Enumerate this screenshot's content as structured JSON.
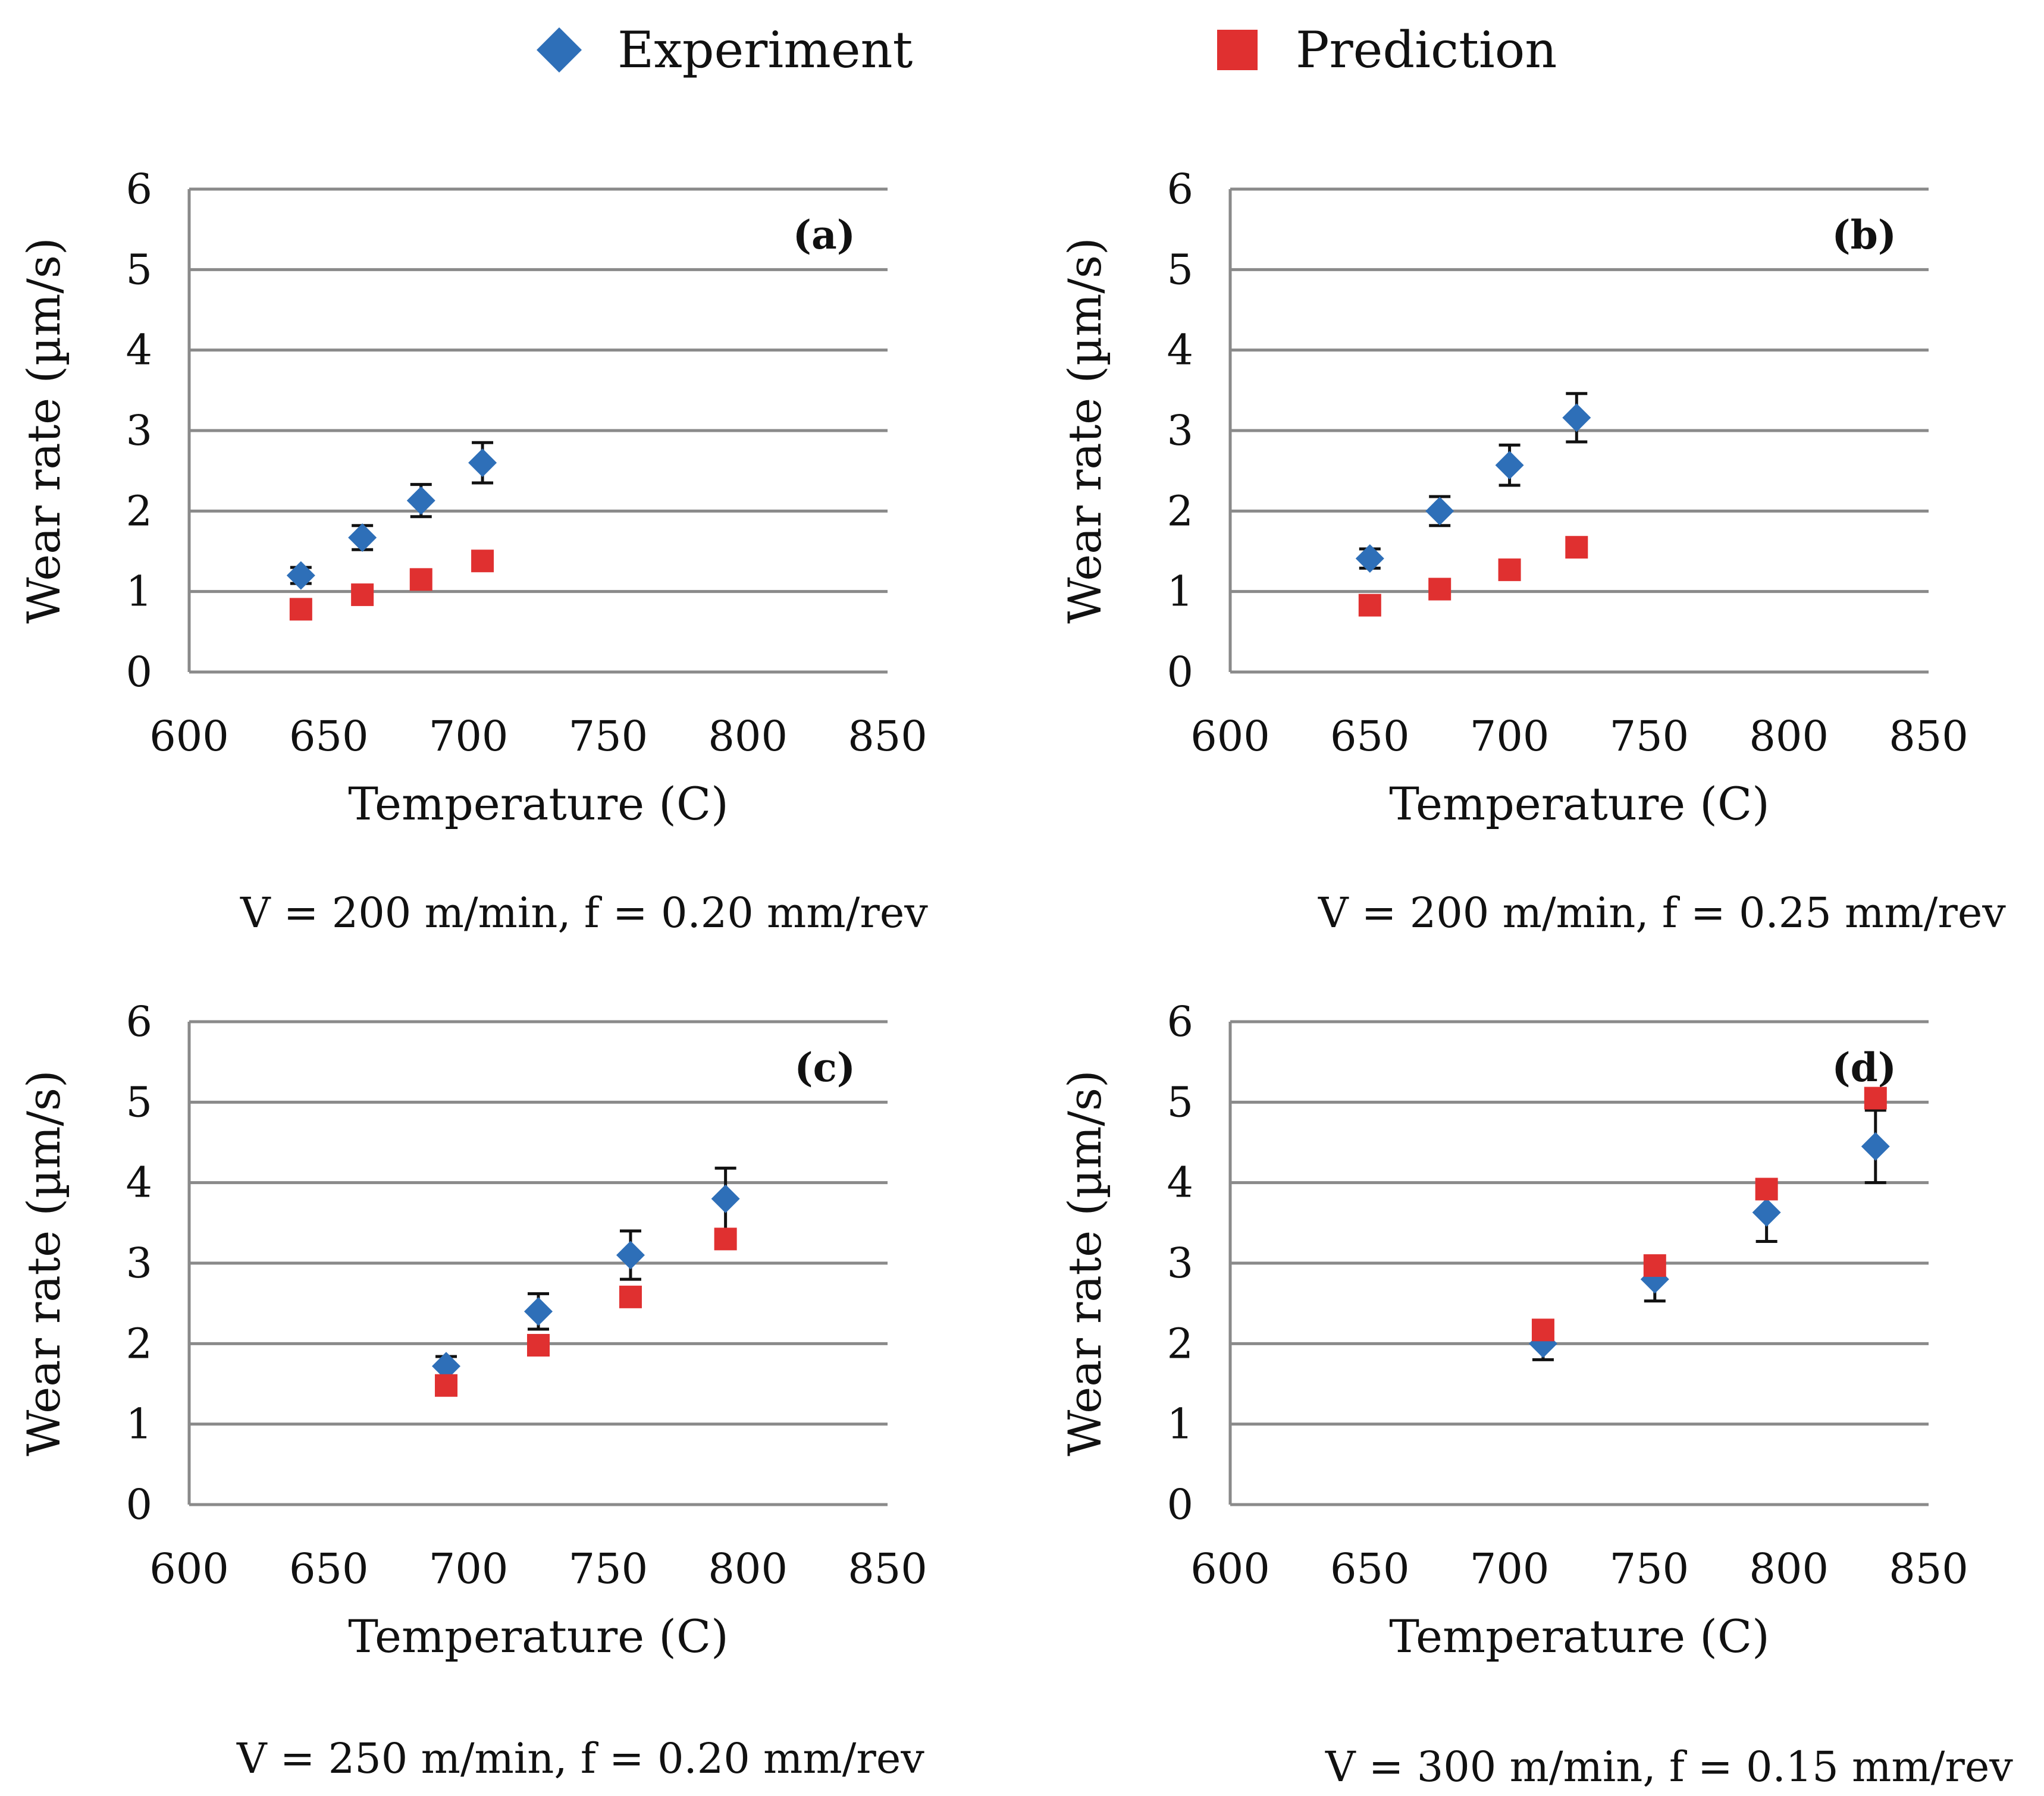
{
  "legend": {
    "experiment_label": "Experiment",
    "prediction_label": "Prediction",
    "experiment_color": "#2e6fb8",
    "prediction_color": "#e03030"
  },
  "chart_data": [
    {
      "type": "scatter",
      "panel": "(a)",
      "caption": "V = 200 m/min, f = 0.20 mm/rev",
      "xlabel": "Temperature (C)",
      "ylabel": "Wear rate (µm/s)",
      "xlim": [
        600,
        850
      ],
      "ylim": [
        0,
        6
      ],
      "xticks": [
        "600",
        "650",
        "700",
        "750",
        "800",
        "850"
      ],
      "yticks": [
        "0",
        "1",
        "2",
        "3",
        "4",
        "5",
        "6"
      ],
      "grid": "horizontal",
      "series": [
        {
          "name": "Experiment",
          "marker": "diamond",
          "x": [
            640,
            662,
            683,
            705
          ],
          "y": [
            1.2,
            1.67,
            2.13,
            2.6
          ],
          "error": [
            0.1,
            0.15,
            0.2,
            0.25
          ]
        },
        {
          "name": "Prediction",
          "marker": "square",
          "x": [
            640,
            662,
            683,
            705
          ],
          "y": [
            0.78,
            0.96,
            1.15,
            1.38
          ]
        }
      ]
    },
    {
      "type": "scatter",
      "panel": "(b)",
      "caption": "V = 200 m/min, f = 0.25 mm/rev",
      "xlabel": "Temperature (C)",
      "ylabel": "Wear rate (µm/s)",
      "xlim": [
        600,
        850
      ],
      "ylim": [
        0,
        6
      ],
      "xticks": [
        "600",
        "650",
        "700",
        "750",
        "800",
        "850"
      ],
      "yticks": [
        "0",
        "1",
        "2",
        "3",
        "4",
        "5",
        "6"
      ],
      "grid": "horizontal",
      "series": [
        {
          "name": "Experiment",
          "marker": "diamond",
          "x": [
            650,
            675,
            700,
            724
          ],
          "y": [
            1.41,
            2.0,
            2.57,
            3.16
          ],
          "error": [
            0.12,
            0.18,
            0.25,
            0.3
          ]
        },
        {
          "name": "Prediction",
          "marker": "square",
          "x": [
            650,
            675,
            700,
            724
          ],
          "y": [
            0.83,
            1.03,
            1.27,
            1.55
          ]
        }
      ]
    },
    {
      "type": "scatter",
      "panel": "(c)",
      "caption": "V = 250 m/min, f = 0.20 mm/rev",
      "xlabel": "Temperature (C)",
      "ylabel": "Wear rate (µm/s)",
      "xlim": [
        600,
        850
      ],
      "ylim": [
        0,
        6
      ],
      "xticks": [
        "600",
        "650",
        "700",
        "750",
        "800",
        "850"
      ],
      "yticks": [
        "0",
        "1",
        "2",
        "3",
        "4",
        "5",
        "6"
      ],
      "grid": "horizontal",
      "series": [
        {
          "name": "Experiment",
          "marker": "diamond",
          "x": [
            692,
            725,
            758,
            792
          ],
          "y": [
            1.72,
            2.4,
            3.1,
            3.8
          ],
          "error": [
            0.12,
            0.22,
            0.3,
            0.38
          ]
        },
        {
          "name": "Prediction",
          "marker": "square",
          "x": [
            692,
            725,
            758,
            792
          ],
          "y": [
            1.48,
            1.98,
            2.58,
            3.3
          ]
        }
      ]
    },
    {
      "type": "scatter",
      "panel": "(d)",
      "caption": "V = 300 m/min, f = 0.15 mm/rev",
      "xlabel": "Temperature (C)",
      "ylabel": "Wear rate (µm/s)",
      "xlim": [
        600,
        850
      ],
      "ylim": [
        0,
        6
      ],
      "xticks": [
        "600",
        "650",
        "700",
        "750",
        "800",
        "850"
      ],
      "yticks": [
        "0",
        "1",
        "2",
        "3",
        "4",
        "5",
        "6"
      ],
      "grid": "horizontal",
      "series": [
        {
          "name": "Experiment",
          "marker": "diamond",
          "x": [
            712,
            752,
            792,
            831
          ],
          "y": [
            2.0,
            2.8,
            3.63,
            4.45
          ],
          "error": [
            0.2,
            0.27,
            0.36,
            0.45
          ]
        },
        {
          "name": "Prediction",
          "marker": "square",
          "x": [
            712,
            752,
            792,
            831
          ],
          "y": [
            2.17,
            2.97,
            3.92,
            5.05
          ]
        }
      ]
    }
  ]
}
